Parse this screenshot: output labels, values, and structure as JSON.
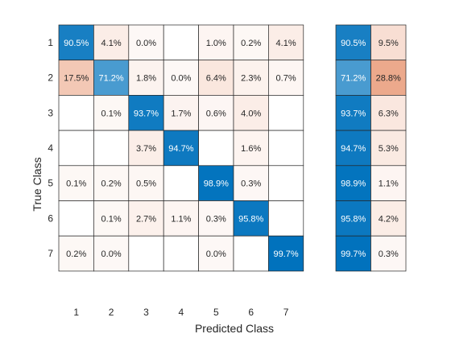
{
  "chart_data": {
    "type": "heatmap",
    "xlabel": "Predicted Class",
    "ylabel": "True Class",
    "classes": [
      "1",
      "2",
      "3",
      "4",
      "5",
      "6",
      "7"
    ],
    "matrix": [
      [
        "90.5%",
        "4.1%",
        "0.0%",
        "",
        "1.0%",
        "0.2%",
        "4.1%"
      ],
      [
        "17.5%",
        "71.2%",
        "1.8%",
        "0.0%",
        "6.4%",
        "2.3%",
        "0.7%"
      ],
      [
        "",
        "0.1%",
        "93.7%",
        "1.7%",
        "0.6%",
        "4.0%",
        ""
      ],
      [
        "",
        "",
        "3.7%",
        "94.7%",
        "",
        "1.6%",
        ""
      ],
      [
        "0.1%",
        "0.2%",
        "0.5%",
        "",
        "98.9%",
        "0.3%",
        ""
      ],
      [
        "",
        "0.1%",
        "2.7%",
        "1.1%",
        "0.3%",
        "95.8%",
        ""
      ],
      [
        "0.2%",
        "0.0%",
        "",
        "",
        "0.0%",
        "",
        "99.7%"
      ]
    ],
    "row_summary": [
      [
        "90.5%",
        "9.5%"
      ],
      [
        "71.2%",
        "28.8%"
      ],
      [
        "93.7%",
        "6.3%"
      ],
      [
        "94.7%",
        "5.3%"
      ],
      [
        "98.9%",
        "1.1%"
      ],
      [
        "95.8%",
        "4.2%"
      ],
      [
        "99.7%",
        "0.3%"
      ]
    ],
    "colors": {
      "correct": "#0072bd",
      "error": "#d95319",
      "text_dark": "#262626",
      "text_light": "#ffffff",
      "grid": "#262626"
    }
  }
}
